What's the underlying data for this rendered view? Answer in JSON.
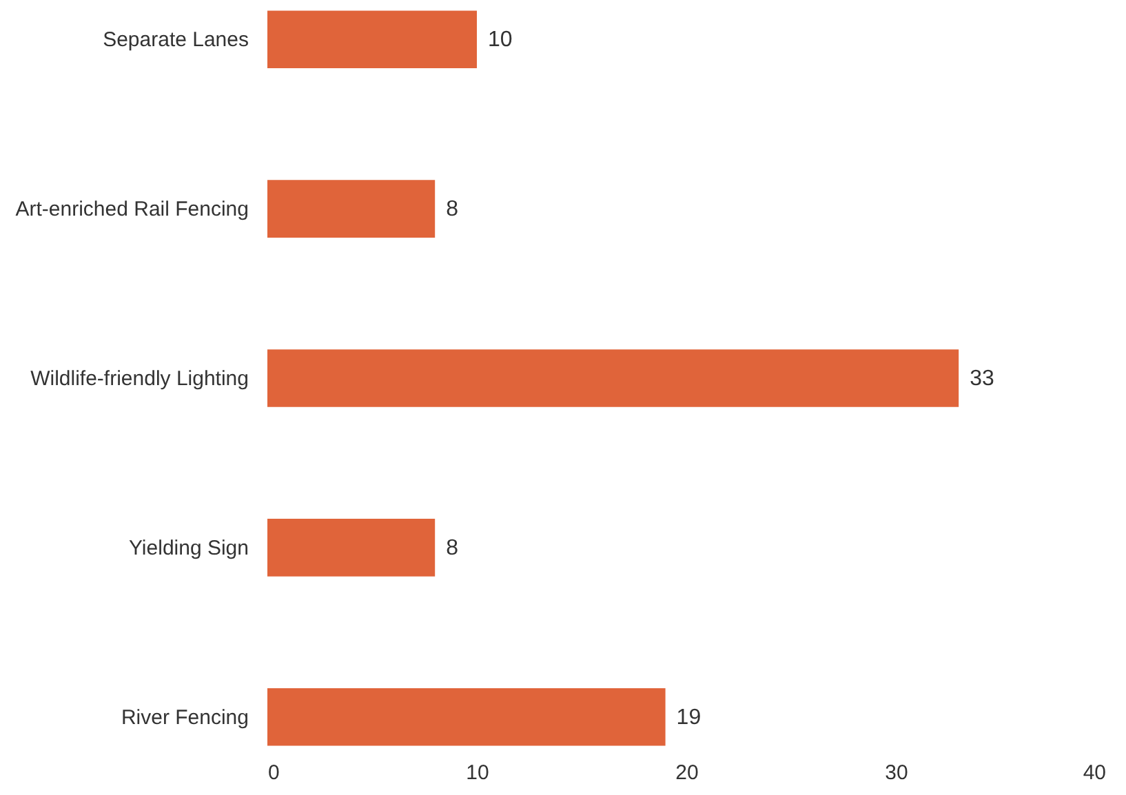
{
  "chart_data": {
    "type": "bar",
    "orientation": "horizontal",
    "categories": [
      "Separate Lanes",
      "Art-enriched Rail Fencing",
      "Wildlife-friendly Lighting",
      "Yielding Sign",
      "River Fencing"
    ],
    "values": [
      10,
      8,
      33,
      8,
      19
    ],
    "color": "#e0643a",
    "data_labels": true,
    "xlim": [
      0,
      40
    ],
    "xticks": [
      0,
      10,
      20,
      30,
      40
    ]
  }
}
